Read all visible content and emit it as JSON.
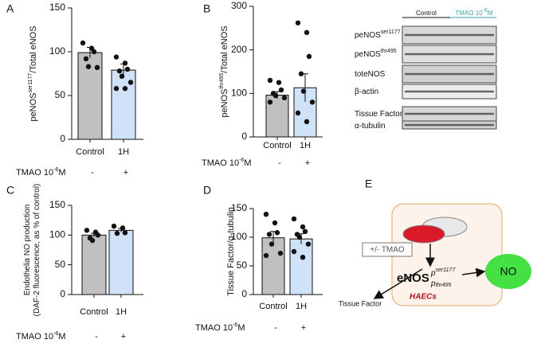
{
  "chart_data": [
    {
      "type": "bar",
      "panel": "A",
      "ylabel": [
        [
          "peNOS",
          {
            "sup": "ser1177"
          },
          "/Total eNOS"
        ]
      ],
      "categories": [
        "Control",
        "1H"
      ],
      "values": [
        99,
        79
      ],
      "errors": [
        6,
        7
      ],
      "points": [
        [
          110,
          104,
          100,
          92,
          83,
          82
        ],
        [
          94,
          87,
          80,
          78,
          72,
          65,
          58,
          58
        ]
      ],
      "colors": [
        "#c0c0c0",
        "#cfe2f7"
      ],
      "ylim": [
        0,
        150
      ],
      "yticks": [
        0,
        50,
        100,
        150
      ],
      "treatment": {
        "label": [
          "TMAO 10",
          {
            "sup": "-6"
          },
          "M"
        ],
        "signs": [
          "-",
          "+"
        ]
      }
    },
    {
      "type": "bar",
      "panel": "B",
      "ylabel": [
        [
          "peNOS",
          {
            "sup": "thr495"
          },
          "/Total eNOS"
        ]
      ],
      "categories": [
        "Control",
        "1H"
      ],
      "values": [
        96,
        113
      ],
      "errors": [
        8,
        32
      ],
      "points": [
        [
          130,
          125,
          108,
          100,
          95,
          90,
          80
        ],
        [
          262,
          240,
          185,
          145,
          105,
          80,
          55,
          35
        ]
      ],
      "colors": [
        "#c0c0c0",
        "#cfe2f7"
      ],
      "ylim": [
        0,
        300
      ],
      "yticks": [
        0,
        100,
        200,
        300
      ],
      "treatment": {
        "label": [
          "TMAO 10",
          {
            "sup": "-6"
          },
          "M"
        ],
        "signs": [
          "-",
          "+"
        ]
      }
    },
    {
      "type": "bar",
      "panel": "C",
      "ylabel": [
        [
          "Endothelia NO production"
        ],
        [
          "(DAF-2 fluorescence, as % of control)"
        ]
      ],
      "categories": [
        "Control",
        "1H"
      ],
      "values": [
        100,
        108
      ],
      "errors": [
        3,
        3
      ],
      "points": [
        [
          108,
          105,
          100,
          95,
          91
        ],
        [
          115,
          112,
          104,
          103
        ]
      ],
      "colors": [
        "#c0c0c0",
        "#cfe2f7"
      ],
      "ylim": [
        0,
        150
      ],
      "yticks": [
        0,
        50,
        100,
        150
      ],
      "treatment": {
        "label": [
          "TMAO 10",
          {
            "sup": "-6"
          },
          "M"
        ],
        "signs": [
          "-",
          "+"
        ]
      }
    },
    {
      "type": "bar",
      "panel": "D",
      "ylabel": [
        [
          "Tissue Factor/α-tubulin"
        ]
      ],
      "categories": [
        "Control",
        "1H"
      ],
      "values": [
        99,
        97
      ],
      "errors": [
        11,
        9
      ],
      "points": [
        [
          140,
          125,
          108,
          105,
          88,
          72,
          68
        ],
        [
          132,
          118,
          110,
          105,
          100,
          88,
          75,
          65
        ]
      ],
      "colors": [
        "#c0c0c0",
        "#cfe2f7"
      ],
      "ylim": [
        0,
        150
      ],
      "yticks": [
        0,
        50,
        100,
        150
      ],
      "treatment": {
        "label": [
          "TMAO 10",
          {
            "sup": "-6"
          },
          "M"
        ],
        "signs": [
          "-",
          "+"
        ]
      }
    }
  ],
  "blot": {
    "groups": [
      [
        "Control"
      ],
      [
        "TMAO 10",
        {
          "sup": "-6"
        },
        "M"
      ]
    ],
    "rows": [
      [
        "peNOS",
        {
          "sup": "ser1177"
        }
      ],
      [
        "peNOS",
        {
          "sup": "thr495"
        }
      ],
      [
        "toteNOS"
      ],
      [
        "β-actin"
      ],
      [
        "Tissue Factor"
      ],
      [
        "α-tubulin"
      ]
    ]
  },
  "diagram": {
    "panel": "E",
    "treatment": "+/- TMAO",
    "enzyme": "eNOS",
    "p": "p",
    "sites": [
      "ser1177",
      "thr495"
    ],
    "product": "NO",
    "target": "Tissue Factor",
    "cells": "HAECs"
  }
}
